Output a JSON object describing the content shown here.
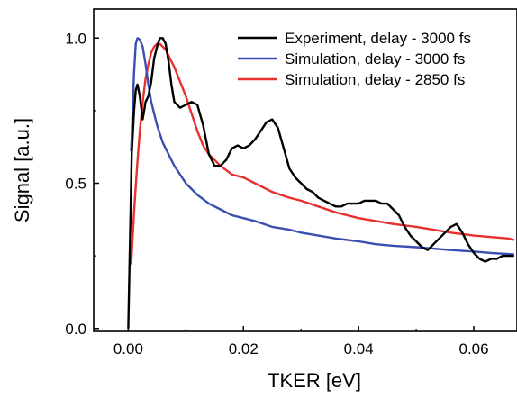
{
  "chart_data": {
    "type": "line",
    "xlabel": "TKER [eV]",
    "ylabel": "Signal [a.u.]",
    "xlim": [
      -0.006,
      0.0675
    ],
    "ylim": [
      -0.01,
      1.1
    ],
    "xticks": [
      0.0,
      0.02,
      0.04,
      0.06
    ],
    "xtick_labels": [
      "0.00",
      "0.02",
      "0.04",
      "0.06"
    ],
    "yticks": [
      0.0,
      0.5,
      1.0
    ],
    "ytick_labels": [
      "0.0",
      "0.5",
      "1.0"
    ],
    "grid": false,
    "legend_position": "top-right",
    "series": [
      {
        "name": "Experiment, delay - 3000 fs",
        "color": "#000000",
        "x": [
          0.0,
          0.0003,
          0.0006,
          0.001,
          0.0013,
          0.0016,
          0.002,
          0.0025,
          0.003,
          0.0035,
          0.004,
          0.0045,
          0.005,
          0.0055,
          0.006,
          0.0065,
          0.007,
          0.0075,
          0.008,
          0.009,
          0.01,
          0.011,
          0.012,
          0.013,
          0.014,
          0.015,
          0.016,
          0.017,
          0.018,
          0.019,
          0.02,
          0.021,
          0.022,
          0.023,
          0.024,
          0.025,
          0.026,
          0.027,
          0.028,
          0.029,
          0.03,
          0.031,
          0.032,
          0.033,
          0.034,
          0.035,
          0.036,
          0.037,
          0.038,
          0.039,
          0.04,
          0.041,
          0.042,
          0.043,
          0.044,
          0.045,
          0.046,
          0.047,
          0.048,
          0.049,
          0.05,
          0.051,
          0.052,
          0.053,
          0.054,
          0.055,
          0.056,
          0.057,
          0.058,
          0.059,
          0.06,
          0.061,
          0.062,
          0.063,
          0.064,
          0.065,
          0.066,
          0.067
        ],
        "values": [
          0.0,
          0.3,
          0.6,
          0.75,
          0.82,
          0.84,
          0.8,
          0.72,
          0.78,
          0.8,
          0.85,
          0.93,
          0.97,
          1.0,
          1.0,
          0.98,
          0.92,
          0.84,
          0.78,
          0.76,
          0.77,
          0.78,
          0.77,
          0.7,
          0.6,
          0.56,
          0.56,
          0.58,
          0.62,
          0.63,
          0.62,
          0.63,
          0.65,
          0.68,
          0.71,
          0.72,
          0.69,
          0.62,
          0.55,
          0.52,
          0.5,
          0.48,
          0.47,
          0.45,
          0.44,
          0.43,
          0.42,
          0.42,
          0.43,
          0.43,
          0.43,
          0.44,
          0.44,
          0.44,
          0.43,
          0.43,
          0.41,
          0.39,
          0.35,
          0.32,
          0.3,
          0.28,
          0.27,
          0.29,
          0.31,
          0.33,
          0.35,
          0.36,
          0.33,
          0.29,
          0.26,
          0.24,
          0.23,
          0.24,
          0.24,
          0.25,
          0.25,
          0.25
        ]
      },
      {
        "name": "Simulation, delay - 3000 fs",
        "color": "#3a4fb0",
        "x": [
          0.0005,
          0.001,
          0.0013,
          0.0016,
          0.002,
          0.0025,
          0.003,
          0.0035,
          0.004,
          0.005,
          0.006,
          0.007,
          0.008,
          0.009,
          0.01,
          0.012,
          0.014,
          0.016,
          0.018,
          0.02,
          0.022,
          0.025,
          0.028,
          0.03,
          0.033,
          0.036,
          0.04,
          0.043,
          0.046,
          0.05,
          0.053,
          0.056,
          0.06,
          0.063,
          0.067
        ],
        "values": [
          0.61,
          0.88,
          0.98,
          1.0,
          0.995,
          0.97,
          0.91,
          0.84,
          0.78,
          0.7,
          0.64,
          0.6,
          0.56,
          0.53,
          0.5,
          0.46,
          0.43,
          0.41,
          0.39,
          0.38,
          0.37,
          0.35,
          0.34,
          0.33,
          0.32,
          0.31,
          0.3,
          0.29,
          0.285,
          0.28,
          0.275,
          0.27,
          0.265,
          0.26,
          0.255
        ]
      },
      {
        "name": "Simulation, delay - 2850 fs",
        "color": "#e8312e",
        "x": [
          0.0005,
          0.001,
          0.0015,
          0.002,
          0.0025,
          0.003,
          0.0035,
          0.004,
          0.0045,
          0.005,
          0.0055,
          0.006,
          0.0065,
          0.007,
          0.0075,
          0.008,
          0.009,
          0.01,
          0.011,
          0.012,
          0.013,
          0.014,
          0.016,
          0.018,
          0.02,
          0.022,
          0.025,
          0.028,
          0.03,
          0.033,
          0.036,
          0.04,
          0.043,
          0.046,
          0.05,
          0.053,
          0.056,
          0.06,
          0.063,
          0.066,
          0.067
        ],
        "values": [
          0.22,
          0.4,
          0.55,
          0.68,
          0.78,
          0.86,
          0.91,
          0.95,
          0.97,
          0.98,
          0.98,
          0.97,
          0.96,
          0.94,
          0.92,
          0.9,
          0.85,
          0.8,
          0.74,
          0.68,
          0.63,
          0.6,
          0.56,
          0.53,
          0.52,
          0.5,
          0.47,
          0.45,
          0.44,
          0.42,
          0.4,
          0.38,
          0.37,
          0.36,
          0.35,
          0.34,
          0.33,
          0.32,
          0.315,
          0.31,
          0.305
        ]
      }
    ]
  }
}
